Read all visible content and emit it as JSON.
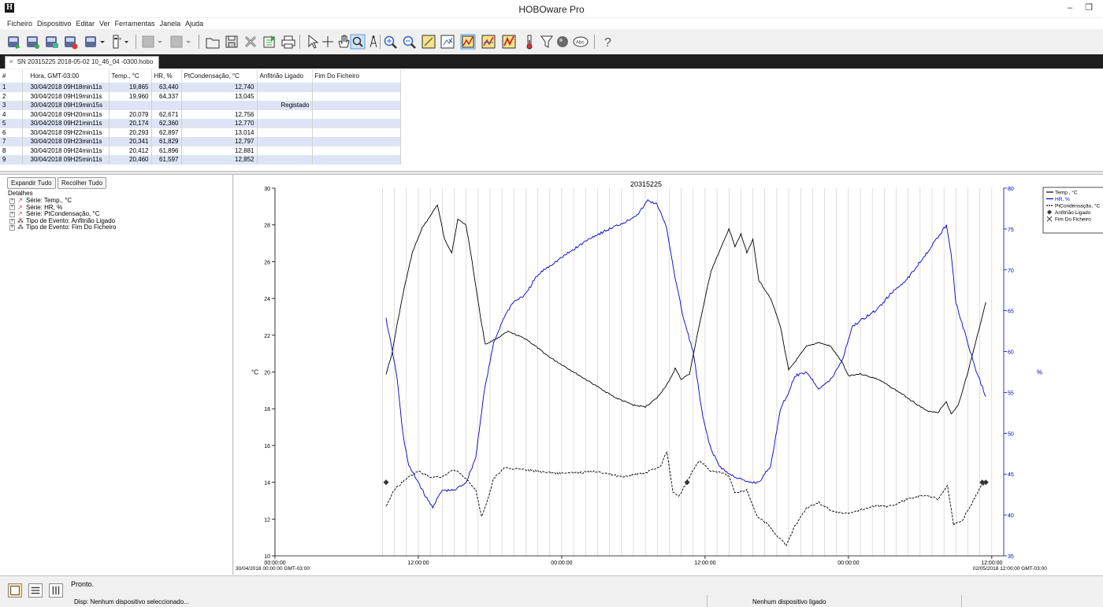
{
  "window": {
    "title": "HOBOware Pro",
    "app_icon_letter": "H"
  },
  "menu": [
    "Ficheiro",
    "Dispositivo",
    "Editar",
    "Ver",
    "Ferramentas",
    "Janela",
    "Ajuda"
  ],
  "toolbar_icons": [
    "readout-icon",
    "launch-icon",
    "status-icon",
    "stop-icon",
    "relaunch-dropdown-icon",
    "device-info-icon",
    "disabled-tool-icon",
    "disabled-tool-2-icon",
    "open-folder-icon",
    "save-icon",
    "close-file-icon",
    "export-icon",
    "print-icon",
    "pointer-icon",
    "crosshair-icon",
    "hand-pan-icon",
    "zoom-box-icon",
    "marker-icon",
    "zoom-in-icon",
    "zoom-out-icon",
    "zoom-fit-icon",
    "select-points-icon",
    "line-graph-icon",
    "series-graph-icon",
    "trend-graph-icon",
    "thermometer-icon",
    "filter-icon",
    "point-style-icon",
    "label-icon",
    "help-icon"
  ],
  "file_tab": {
    "label": "SN 20315225 2018-05-02 10_46_04 -0300.hobo"
  },
  "table": {
    "headers": [
      "#",
      "Hora, GMT-03:00",
      "Temp., °C",
      "HR, %",
      "PtCondensação, °C",
      "Anfitrião Ligado",
      "Fim Do Ficheiro"
    ],
    "rows": [
      [
        "1",
        "30/04/2018 09H18min11s",
        "19,865",
        "63,440",
        "12,740",
        "",
        ""
      ],
      [
        "2",
        "30/04/2018 09H19min11s",
        "19,960",
        "64,337",
        "13,045",
        "",
        ""
      ],
      [
        "3",
        "30/04/2018 09H19min15s",
        "",
        "",
        "",
        "Registado",
        ""
      ],
      [
        "4",
        "30/04/2018 09H20min11s",
        "20,079",
        "62,671",
        "12,756",
        "",
        ""
      ],
      [
        "5",
        "30/04/2018 09H21min11s",
        "20,174",
        "62,360",
        "12,770",
        "",
        ""
      ],
      [
        "6",
        "30/04/2018 09H22min11s",
        "20,293",
        "62,897",
        "13,014",
        "",
        ""
      ],
      [
        "7",
        "30/04/2018 09H23min11s",
        "20,341",
        "61,829",
        "12,797",
        "",
        ""
      ],
      [
        "8",
        "30/04/2018 09H24min11s",
        "20,412",
        "61,896",
        "12,881",
        "",
        ""
      ],
      [
        "9",
        "30/04/2018 09H25min11s",
        "20,460",
        "61,597",
        "12,852",
        "",
        ""
      ]
    ]
  },
  "details": {
    "expand_all": "Expandir Tudo",
    "collapse_all": "Recolher Tudo",
    "label": "Detalhes",
    "items": [
      {
        "label": "Série: Temp., °C",
        "icon": "series-line-icon"
      },
      {
        "label": "Série: HR, %",
        "icon": "series-line-icon"
      },
      {
        "label": "Série: PtCondensação, °C",
        "icon": "series-line-icon"
      },
      {
        "label": "Tipo de Evento: Anfitrião Ligado",
        "icon": "event-type-icon"
      },
      {
        "label": "Tipo de Evento: Fim Do Ficheiro",
        "icon": "event-type-icon"
      }
    ]
  },
  "chart_data": {
    "type": "line",
    "title": "20315225",
    "ylabel_left": "°C",
    "ylabel_right": "%",
    "y_left": [
      10,
      30
    ],
    "y_left_ticks": [
      "10",
      "12",
      "14",
      "16",
      "18",
      "20",
      "22",
      "24",
      "26",
      "28",
      "30"
    ],
    "y_right": [
      35,
      80
    ],
    "y_right_ticks": [
      "35",
      "40",
      "45",
      "50",
      "55",
      "60",
      "65",
      "70",
      "75",
      "80"
    ],
    "x_range_hours": [
      "30/04/2018 00:00:00",
      "02/05/2018 12:00:00"
    ],
    "x_ticks": [
      {
        "label": "00:00:00",
        "sub": "30/04/2018 00:00:00 GMT-03:00",
        "hour": 0
      },
      {
        "label": "12:00:00",
        "sub": "",
        "hour": 12
      },
      {
        "label": "00:00:00",
        "sub": "",
        "hour": 24
      },
      {
        "label": "12:00:00",
        "sub": "",
        "hour": 36
      },
      {
        "label": "00:00:00",
        "sub": "",
        "hour": 48
      },
      {
        "label": "12:00:00",
        "sub": "02/05/2018 12:00:00 GMT-03:00",
        "hour": 60
      }
    ],
    "grid": "vertical",
    "legend_position": "top-right",
    "series": [
      {
        "name": "Temp., °C",
        "color": "#000000",
        "style": "solid",
        "axis": "left",
        "points": [
          [
            9.3,
            19.9
          ],
          [
            9.8,
            21
          ],
          [
            10.2,
            22.5
          ],
          [
            10.8,
            24.5
          ],
          [
            11.5,
            26.5
          ],
          [
            12.3,
            27.8
          ],
          [
            13,
            28.5
          ],
          [
            13.6,
            29.1
          ],
          [
            14.2,
            27.2
          ],
          [
            14.8,
            26.5
          ],
          [
            15.3,
            28.3
          ],
          [
            16,
            28
          ],
          [
            16.5,
            26
          ],
          [
            17.2,
            23
          ],
          [
            17.6,
            21.5
          ],
          [
            18.5,
            21.8
          ],
          [
            19.5,
            22.2
          ],
          [
            21,
            21.8
          ],
          [
            23,
            20.8
          ],
          [
            26,
            19.6
          ],
          [
            28.5,
            18.6
          ],
          [
            30,
            18.2
          ],
          [
            31,
            18.1
          ],
          [
            32,
            18.6
          ],
          [
            33,
            19.5
          ],
          [
            33.5,
            20.2
          ],
          [
            34,
            19.6
          ],
          [
            34.7,
            19.9
          ],
          [
            35.5,
            22.5
          ],
          [
            36.5,
            25.5
          ],
          [
            37.5,
            27
          ],
          [
            38,
            27.8
          ],
          [
            38.5,
            26.8
          ],
          [
            39,
            27.5
          ],
          [
            39.5,
            26.5
          ],
          [
            40,
            27.2
          ],
          [
            40.5,
            25
          ],
          [
            41.5,
            24
          ],
          [
            42.3,
            22.5
          ],
          [
            43,
            20.1
          ],
          [
            44.5,
            21.4
          ],
          [
            45.5,
            21.6
          ],
          [
            46.5,
            21.4
          ],
          [
            47.5,
            20.5
          ],
          [
            48,
            19.8
          ],
          [
            49,
            19.9
          ],
          [
            50.5,
            19.6
          ],
          [
            52.5,
            18.8
          ],
          [
            54.5,
            17.9
          ],
          [
            55.5,
            17.8
          ],
          [
            56.2,
            18.4
          ],
          [
            56.6,
            17.7
          ],
          [
            57.2,
            18.2
          ],
          [
            58,
            20
          ],
          [
            58.8,
            22
          ],
          [
            59.5,
            23.8
          ]
        ]
      },
      {
        "name": "HR, %",
        "color": "#0000cc",
        "style": "solid",
        "axis": "right",
        "points": [
          [
            9.3,
            64
          ],
          [
            9.7,
            61
          ],
          [
            10.2,
            57
          ],
          [
            10.7,
            50
          ],
          [
            11.2,
            46
          ],
          [
            12,
            44
          ],
          [
            12.7,
            42
          ],
          [
            13.2,
            41
          ],
          [
            14,
            43
          ],
          [
            15,
            43
          ],
          [
            16,
            44
          ],
          [
            16.8,
            47
          ],
          [
            17.5,
            55
          ],
          [
            18.3,
            61
          ],
          [
            19.1,
            64
          ],
          [
            19.9,
            66
          ],
          [
            21,
            67
          ],
          [
            21.8,
            69
          ],
          [
            22.5,
            70
          ],
          [
            23.5,
            71
          ],
          [
            25,
            72.5
          ],
          [
            26.5,
            74
          ],
          [
            28,
            75
          ],
          [
            29.5,
            76
          ],
          [
            30.5,
            77
          ],
          [
            31.2,
            78.5
          ],
          [
            32,
            78
          ],
          [
            32.8,
            75
          ],
          [
            33.5,
            69
          ],
          [
            34.2,
            64
          ],
          [
            35,
            60
          ],
          [
            35.8,
            52
          ],
          [
            36.5,
            48
          ],
          [
            37.2,
            46
          ],
          [
            38,
            45
          ],
          [
            38.8,
            44.5
          ],
          [
            39.5,
            44
          ],
          [
            40.5,
            44
          ],
          [
            41.5,
            46
          ],
          [
            42.3,
            53
          ],
          [
            43,
            55
          ],
          [
            43.5,
            57
          ],
          [
            44.5,
            57.5
          ],
          [
            45.5,
            55.5
          ],
          [
            46.5,
            56.5
          ],
          [
            47.5,
            59
          ],
          [
            48.3,
            63
          ],
          [
            49.2,
            64
          ],
          [
            50.3,
            65
          ],
          [
            51.5,
            67
          ],
          [
            53,
            69
          ],
          [
            54.5,
            72
          ],
          [
            55.5,
            74
          ],
          [
            56.2,
            75.5
          ],
          [
            56.6,
            72
          ],
          [
            57,
            66
          ],
          [
            57.8,
            62
          ],
          [
            58.6,
            58
          ],
          [
            59.5,
            54.5
          ]
        ]
      },
      {
        "name": "PtCondensação, °C",
        "color": "#000000",
        "style": "dashed",
        "axis": "left",
        "points": [
          [
            9.3,
            12.7
          ],
          [
            10,
            13.6
          ],
          [
            11,
            14.2
          ],
          [
            12,
            14.6
          ],
          [
            13,
            14.3
          ],
          [
            14,
            14.3
          ],
          [
            15,
            14.7
          ],
          [
            16,
            14.2
          ],
          [
            16.8,
            13.6
          ],
          [
            17.3,
            12.1
          ],
          [
            17.7,
            12.8
          ],
          [
            18.3,
            14.2
          ],
          [
            19.2,
            14.8
          ],
          [
            20.5,
            14.7
          ],
          [
            22,
            14.6
          ],
          [
            23.5,
            14.5
          ],
          [
            25,
            14.5
          ],
          [
            27,
            14.6
          ],
          [
            29,
            14.3
          ],
          [
            31,
            14.5
          ],
          [
            32.3,
            14.9
          ],
          [
            32.8,
            15.7
          ],
          [
            33.3,
            13.5
          ],
          [
            33.8,
            13.2
          ],
          [
            34.6,
            14.2
          ],
          [
            35.5,
            15.2
          ],
          [
            36.5,
            14.6
          ],
          [
            37.5,
            14.5
          ],
          [
            38,
            14.3
          ],
          [
            38.5,
            13.4
          ],
          [
            39.5,
            13.6
          ],
          [
            40.3,
            12.2
          ],
          [
            41.3,
            11.7
          ],
          [
            42,
            11.1
          ],
          [
            42.8,
            10.6
          ],
          [
            43.5,
            11.6
          ],
          [
            44.5,
            12.6
          ],
          [
            45.5,
            12.9
          ],
          [
            46.5,
            12.5
          ],
          [
            47.5,
            12.3
          ],
          [
            48.5,
            12.4
          ],
          [
            50,
            12.7
          ],
          [
            51.5,
            12.7
          ],
          [
            53,
            13.1
          ],
          [
            54.5,
            13.3
          ],
          [
            55.5,
            13.1
          ],
          [
            56.3,
            13.8
          ],
          [
            56.8,
            11.7
          ],
          [
            57.5,
            11.9
          ],
          [
            58.3,
            12.8
          ],
          [
            59,
            13.7
          ],
          [
            59.5,
            14
          ]
        ]
      }
    ],
    "events": [
      {
        "type": "Anfitrião Ligado",
        "hour": 9.3,
        "y": 14
      },
      {
        "type": "Anfitrião Ligado",
        "hour": 34.5,
        "y": 14
      },
      {
        "type": "Anfitrião Ligado",
        "hour": 59.2,
        "y": 14
      },
      {
        "type": "Fim Do Ficheiro",
        "hour": 59.5,
        "y": 14
      }
    ],
    "legend": [
      {
        "label": "Temp., °C",
        "kind": "solid-black"
      },
      {
        "label": "HR, %",
        "kind": "solid-blue"
      },
      {
        "label": "PtCondensação, °C",
        "kind": "dashed-black"
      },
      {
        "label": "Anfitrião Ligado",
        "kind": "diamond"
      },
      {
        "label": "Fim Do Ficheiro",
        "kind": "cross"
      }
    ]
  },
  "status": {
    "main": "Pronto.",
    "device": "Disp: Nenhum dispositivo seleccionado...",
    "right": "Nenhum dispositivo ligado"
  }
}
